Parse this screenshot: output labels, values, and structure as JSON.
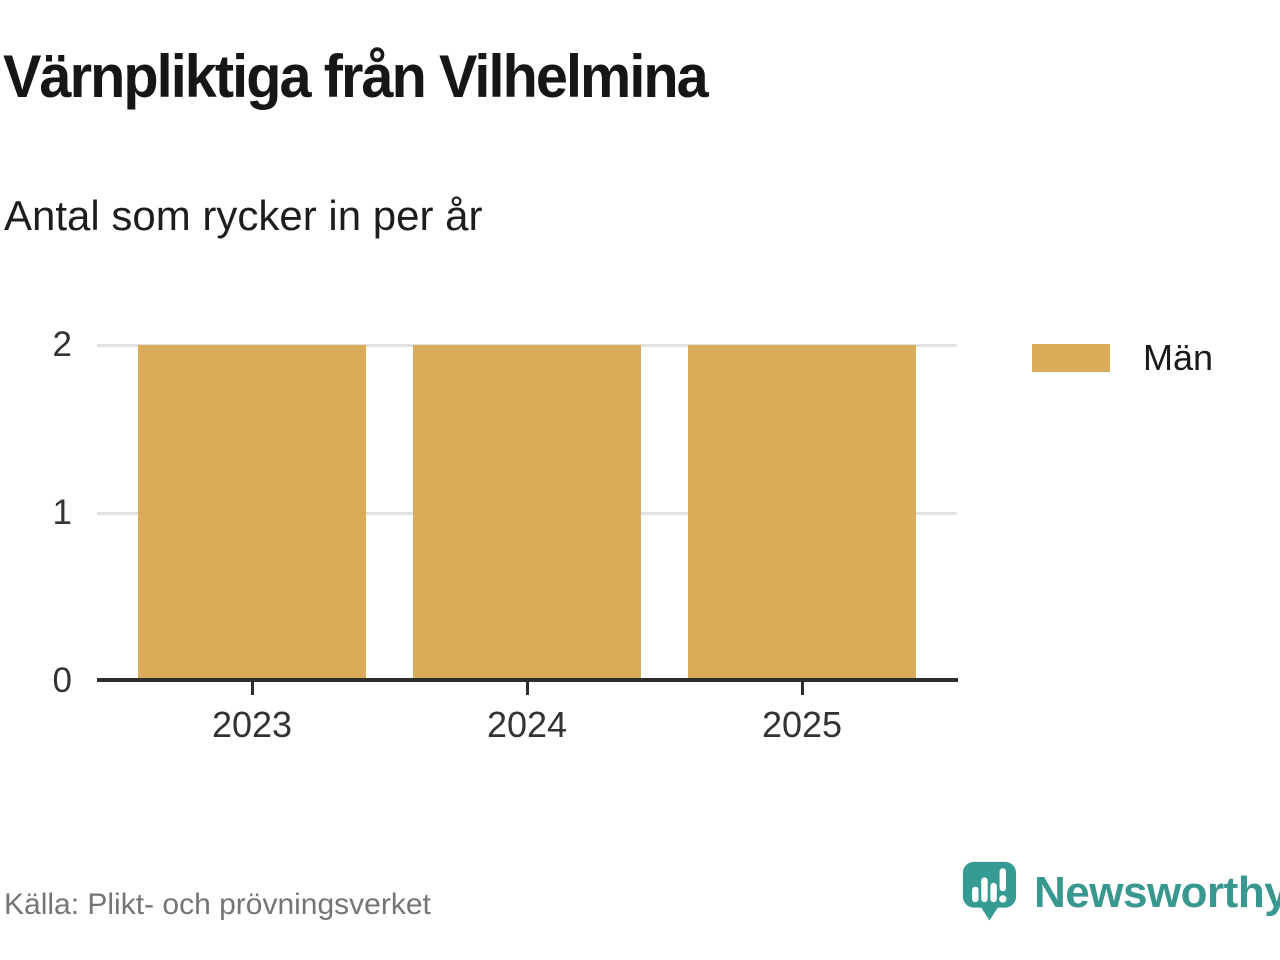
{
  "header": {
    "title": "Värnpliktiga från Vilhelmina",
    "subtitle": "Antal som rycker in per år"
  },
  "chart_data": {
    "type": "bar",
    "categories": [
      "2023",
      "2024",
      "2025"
    ],
    "series": [
      {
        "name": "Män",
        "values": [
          2,
          2,
          2
        ],
        "color": "#d9ac59"
      }
    ],
    "title": "Värnpliktiga från Vilhelmina",
    "subtitle": "Antal som rycker in per år",
    "xlabel": "",
    "ylabel": "",
    "ylim": [
      0,
      2
    ],
    "yticks": [
      0,
      1,
      2
    ],
    "grid": true,
    "gridline_color": "#e1e1e1",
    "axis_color": "#2d2d2d",
    "legend_position": "right"
  },
  "legend": {
    "items": [
      {
        "label": "Män",
        "color": "#d9ac59"
      }
    ]
  },
  "footer": {
    "source": "Källa: Plikt- och prövningsverket",
    "brand": "Newsworthy",
    "brand_color": "#38978f",
    "brand_icon_color": "#359c94"
  }
}
